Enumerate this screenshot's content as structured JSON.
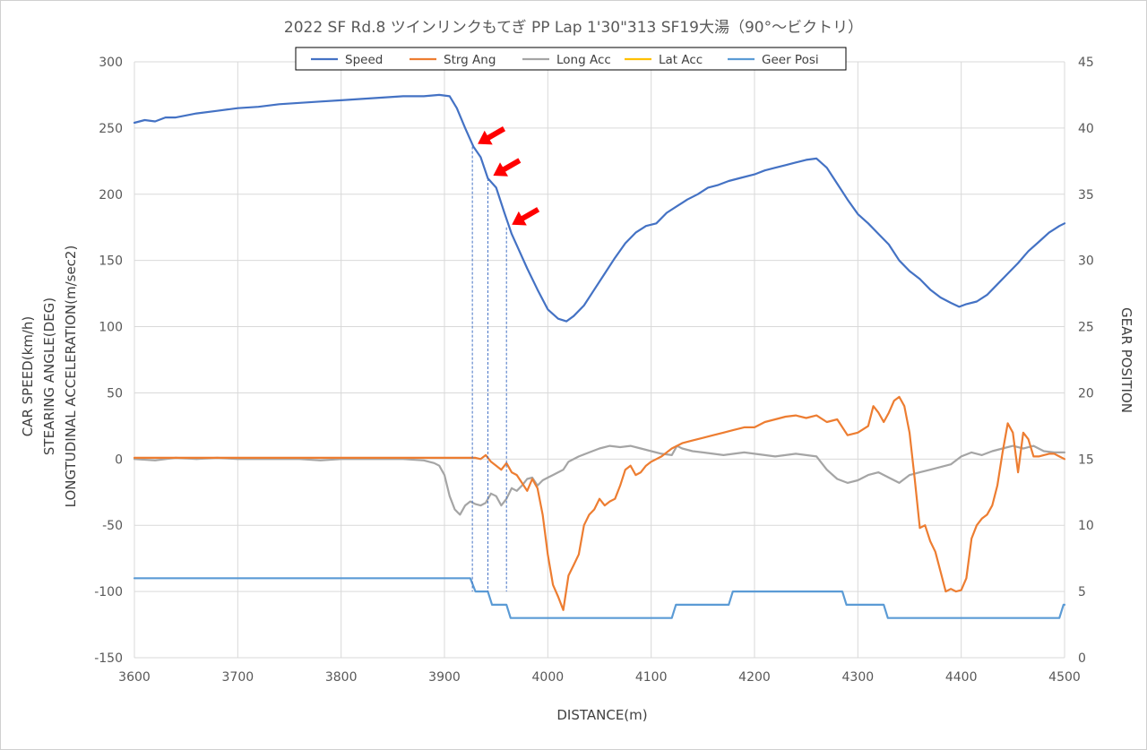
{
  "chart_data": {
    "type": "line",
    "title": "2022 SF Rd.8 ツインリンクもてぎ PP Lap 1'30\"313 SF19大湯（90°～ビクトリ）",
    "xlabel": "DISTANCE(m)",
    "ylabel_lines": [
      "CAR SPEED(km/h)",
      "STEARING ANGLE(DEG)",
      "LONGTUDINAL ACCELERATION(m/sec2)"
    ],
    "y2label": "GEAR POSITION",
    "xlim": [
      3600,
      4500
    ],
    "ylim": [
      -150,
      300
    ],
    "y2lim": [
      0,
      45
    ],
    "xticks": [
      "3600",
      "3700",
      "3800",
      "3900",
      "4000",
      "4100",
      "4200",
      "4300",
      "4400",
      "4500"
    ],
    "yticks": [
      "300",
      "250",
      "200",
      "150",
      "100",
      "50",
      "0",
      "-50",
      "-100",
      "-150"
    ],
    "y2ticks": [
      "45",
      "40",
      "35",
      "30",
      "25",
      "20",
      "15",
      "10",
      "5",
      "0"
    ],
    "grid": true,
    "legend_position": "top-center",
    "series": [
      {
        "name": "Speed",
        "axis": "left",
        "color": "#4472C4",
        "x": [
          3600,
          3610,
          3620,
          3630,
          3640,
          3660,
          3680,
          3700,
          3720,
          3740,
          3760,
          3780,
          3800,
          3820,
          3840,
          3860,
          3880,
          3895,
          3905,
          3912,
          3920,
          3928,
          3935,
          3942,
          3950,
          3958,
          3965,
          3972,
          3980,
          3990,
          4000,
          4010,
          4018,
          4025,
          4035,
          4045,
          4055,
          4065,
          4075,
          4085,
          4095,
          4105,
          4115,
          4125,
          4135,
          4145,
          4155,
          4165,
          4175,
          4185,
          4200,
          4210,
          4220,
          4230,
          4240,
          4250,
          4260,
          4270,
          4280,
          4290,
          4300,
          4310,
          4320,
          4330,
          4340,
          4350,
          4360,
          4370,
          4380,
          4390,
          4398,
          4405,
          4415,
          4425,
          4435,
          4445,
          4455,
          4465,
          4475,
          4485,
          4495,
          4500
        ],
        "values": [
          254,
          256,
          255,
          258,
          258,
          261,
          263,
          265,
          266,
          268,
          269,
          270,
          271,
          272,
          273,
          274,
          274,
          275,
          274,
          265,
          250,
          236,
          228,
          212,
          205,
          186,
          170,
          158,
          144,
          128,
          113,
          106,
          104,
          108,
          116,
          128,
          140,
          152,
          163,
          171,
          176,
          178,
          186,
          191,
          196,
          200,
          205,
          207,
          210,
          212,
          215,
          218,
          220,
          222,
          224,
          226,
          227,
          220,
          208,
          196,
          185,
          178,
          170,
          162,
          150,
          142,
          136,
          128,
          122,
          118,
          115,
          117,
          119,
          124,
          132,
          140,
          148,
          157,
          164,
          171,
          176,
          178
        ]
      },
      {
        "name": "Strg Ang",
        "axis": "left",
        "color": "#ED7D31",
        "x": [
          3600,
          3650,
          3700,
          3750,
          3800,
          3850,
          3900,
          3925,
          3930,
          3935,
          3940,
          3945,
          3950,
          3955,
          3960,
          3965,
          3970,
          3975,
          3980,
          3985,
          3990,
          3995,
          4000,
          4005,
          4010,
          4015,
          4020,
          4025,
          4030,
          4035,
          4040,
          4045,
          4050,
          4055,
          4060,
          4065,
          4070,
          4075,
          4080,
          4085,
          4090,
          4095,
          4100,
          4110,
          4120,
          4130,
          4140,
          4150,
          4160,
          4170,
          4180,
          4190,
          4200,
          4210,
          4220,
          4230,
          4240,
          4250,
          4260,
          4270,
          4280,
          4290,
          4300,
          4310,
          4315,
          4320,
          4325,
          4330,
          4335,
          4340,
          4345,
          4350,
          4355,
          4360,
          4365,
          4370,
          4375,
          4380,
          4385,
          4390,
          4395,
          4400,
          4405,
          4410,
          4415,
          4420,
          4425,
          4430,
          4435,
          4440,
          4445,
          4450,
          4455,
          4460,
          4465,
          4470,
          4475,
          4480,
          4485,
          4490,
          4495,
          4500
        ],
        "values": [
          1,
          1,
          1,
          1,
          1,
          1,
          1,
          1,
          1,
          0,
          3,
          -2,
          -5,
          -8,
          -3,
          -10,
          -12,
          -18,
          -24,
          -15,
          -22,
          -42,
          -72,
          -95,
          -104,
          -114,
          -88,
          -80,
          -72,
          -50,
          -42,
          -38,
          -30,
          -35,
          -32,
          -30,
          -20,
          -8,
          -5,
          -12,
          -10,
          -5,
          -2,
          2,
          8,
          12,
          14,
          16,
          18,
          20,
          22,
          24,
          24,
          28,
          30,
          32,
          33,
          31,
          33,
          28,
          30,
          18,
          20,
          25,
          40,
          35,
          28,
          35,
          44,
          47,
          40,
          20,
          -15,
          -52,
          -50,
          -62,
          -70,
          -85,
          -100,
          -98,
          -100,
          -99,
          -90,
          -60,
          -50,
          -45,
          -42,
          -35,
          -20,
          5,
          27,
          20,
          -10,
          20,
          15,
          2,
          2,
          3,
          4,
          4,
          2,
          0
        ]
      },
      {
        "name": "Long Acc",
        "axis": "left",
        "color": "#A5A5A5",
        "x": [
          3600,
          3620,
          3640,
          3660,
          3680,
          3700,
          3720,
          3740,
          3760,
          3780,
          3800,
          3820,
          3840,
          3860,
          3880,
          3890,
          3895,
          3900,
          3905,
          3910,
          3915,
          3920,
          3925,
          3930,
          3935,
          3940,
          3945,
          3950,
          3955,
          3960,
          3965,
          3970,
          3975,
          3980,
          3985,
          3990,
          3995,
          4000,
          4005,
          4010,
          4015,
          4020,
          4030,
          4040,
          4050,
          4060,
          4070,
          4080,
          4090,
          4100,
          4110,
          4120,
          4125,
          4130,
          4140,
          4150,
          4160,
          4170,
          4180,
          4190,
          4200,
          4210,
          4220,
          4230,
          4240,
          4250,
          4260,
          4270,
          4280,
          4290,
          4300,
          4310,
          4320,
          4330,
          4340,
          4350,
          4360,
          4370,
          4380,
          4390,
          4400,
          4410,
          4420,
          4430,
          4440,
          4450,
          4460,
          4470,
          4480,
          4490,
          4500
        ],
        "values": [
          0,
          -1,
          1,
          0,
          1,
          0,
          0,
          0,
          0,
          -1,
          0,
          0,
          0,
          0,
          -1,
          -3,
          -5,
          -12,
          -28,
          -38,
          -42,
          -35,
          -32,
          -34,
          -35,
          -33,
          -26,
          -28,
          -35,
          -30,
          -22,
          -24,
          -20,
          -15,
          -14,
          -20,
          -16,
          -14,
          -12,
          -10,
          -8,
          -2,
          2,
          5,
          8,
          10,
          9,
          10,
          8,
          6,
          4,
          3,
          10,
          8,
          6,
          5,
          4,
          3,
          4,
          5,
          4,
          3,
          2,
          3,
          4,
          3,
          2,
          -8,
          -15,
          -18,
          -16,
          -12,
          -10,
          -14,
          -18,
          -12,
          -10,
          -8,
          -6,
          -4,
          2,
          5,
          3,
          6,
          8,
          10,
          8,
          10,
          6,
          5,
          5
        ]
      },
      {
        "name": "Lat Acc",
        "axis": "left",
        "color": "#FFC000",
        "x": [],
        "values": []
      },
      {
        "name": "Geer Posi",
        "axis": "right",
        "color": "#5B9BD5",
        "x": [
          3600,
          3925,
          3930,
          3942,
          3946,
          3960,
          3964,
          4120,
          4124,
          4175,
          4179,
          4285,
          4289,
          4325,
          4329,
          4495,
          4499,
          4500
        ],
        "values": [
          6,
          6,
          5,
          5,
          4,
          4,
          3,
          3,
          4,
          4,
          5,
          5,
          4,
          4,
          3,
          3,
          4,
          4
        ]
      }
    ],
    "annotations": {
      "arrows": 3,
      "markers": [
        {
          "x": 3927,
          "speed": 236
        },
        {
          "x": 3942,
          "speed": 212
        },
        {
          "x": 3960,
          "speed": 175
        }
      ],
      "marker_color": "#4472C4",
      "arrow_color": "#FF0000"
    }
  }
}
